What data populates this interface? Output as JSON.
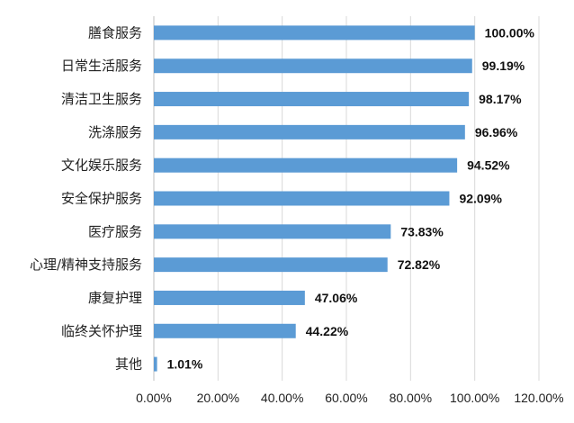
{
  "chart_data": {
    "type": "bar",
    "orientation": "horizontal",
    "categories": [
      "膳食服务",
      "日常生活服务",
      "清洁卫生服务",
      "洗涤服务",
      "文化娱乐服务",
      "安全保护服务",
      "医疗服务",
      "心理/精神支持服务",
      "康复护理",
      "临终关怀护理",
      "其他"
    ],
    "values": [
      100.0,
      99.19,
      98.17,
      96.96,
      94.52,
      92.09,
      73.83,
      72.82,
      47.06,
      44.22,
      1.01
    ],
    "value_labels": [
      "100.00%",
      "99.19%",
      "98.17%",
      "96.96%",
      "94.52%",
      "92.09%",
      "73.83%",
      "72.82%",
      "47.06%",
      "44.22%",
      "1.01%"
    ],
    "x_ticks": [
      0,
      20,
      40,
      60,
      80,
      100,
      120
    ],
    "x_tick_labels": [
      "0.00%",
      "20.00%",
      "40.00%",
      "60.00%",
      "80.00%",
      "100.00%",
      "120.00%"
    ],
    "xlim": [
      0,
      120
    ],
    "title": "",
    "xlabel": "",
    "ylabel": "",
    "grid": "vertical",
    "legend": "none",
    "bar_color": "#5B9BD5"
  }
}
